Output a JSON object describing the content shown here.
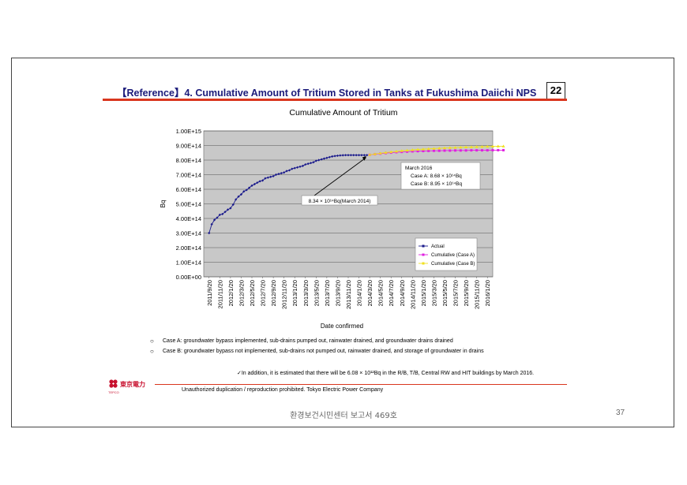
{
  "slide": {
    "title": "【Reference】4.  Cumulative Amount of Tritium Stored in Tanks at Fukushima Daiichi NPS",
    "page_box": "22",
    "case_a": "Case A: groundwater bypass implemented, sub-drains pumped out, rainwater drained, and groundwater drains drained",
    "case_b": "Case B: groundwater bypass not implemented, sub-drains not pumped out, rainwater drained, and storage of groundwater in drains",
    "bullet_symbol": "○",
    "addition_note": "✓In addition, it is estimated that there will be 6.08 × 10¹²Bq in the R/B, T/B, Central RW and HIT buildings by March 2016.",
    "copyright": "Unauthorized duplication / reproduction prohibited.  Tokyo Electric Power Company",
    "logo_text": "東京電力",
    "logo_sub": "TEPCO"
  },
  "footer": {
    "report": "환경보건시민센터 보고서 469호",
    "page": "37"
  },
  "colors": {
    "actual": "#1a1a8c",
    "case_a": "#e020e0",
    "case_b": "#f0e020",
    "plot_bg": "#c8c8c8",
    "title": "#1a1a7a",
    "accent": "#d9361e"
  },
  "chart_data": {
    "type": "line",
    "title": "Cumulative Amount of Tritium",
    "xlabel": "Date confirmed",
    "ylabel": "Bq",
    "ylim": [
      0,
      1000000000000000.0
    ],
    "yticks": [
      0,
      100000000000000.0,
      200000000000000.0,
      300000000000000.0,
      400000000000000.0,
      500000000000000.0,
      600000000000000.0,
      700000000000000.0,
      800000000000000.0,
      900000000000000.0,
      1000000000000000.0
    ],
    "ytick_labels": [
      "0.00E+00",
      "1.00E+14",
      "2.00E+14",
      "3.00E+14",
      "4.00E+14",
      "5.00E+14",
      "6.00E+14",
      "7.00E+14",
      "8.00E+14",
      "9.00E+14",
      "1.00E+15"
    ],
    "xtick_labels": [
      "2011/9/20",
      "2011/11/20",
      "2012/1/20",
      "2012/3/20",
      "2012/5/20",
      "2012/7/20",
      "2012/9/20",
      "2012/11/20",
      "2013/1/20",
      "2013/3/20",
      "2013/5/20",
      "2013/7/20",
      "2013/9/20",
      "2013/11/20",
      "2014/1/20",
      "2014/3/20",
      "2014/5/20",
      "2014/7/20",
      "2014/9/20",
      "2014/11/20",
      "2015/1/20",
      "2015/3/20",
      "2015/5/20",
      "2015/7/20",
      "2015/9/20",
      "2015/11/20",
      "2016/1/20"
    ],
    "grid": true,
    "legend_position": "bottom-right",
    "series": [
      {
        "name": "Actual",
        "x": [
          0,
          0.25,
          0.5,
          0.75,
          1,
          1.25,
          1.5,
          1.75,
          2,
          2.25,
          2.5,
          2.75,
          3,
          3.25,
          3.5,
          3.75,
          4,
          4.25,
          4.5,
          4.75,
          5,
          5.25,
          5.5,
          5.75,
          6,
          6.25,
          6.5,
          6.75,
          7,
          7.25,
          7.5,
          7.75,
          8,
          8.25,
          8.5,
          8.75,
          9,
          9.25,
          9.5,
          9.75,
          10,
          10.25,
          10.5,
          10.75,
          11,
          11.25,
          11.5,
          11.75,
          12,
          12.25,
          12.5,
          12.75,
          13,
          13.25,
          13.5,
          13.75,
          14,
          14.25,
          14.5,
          14.75
        ],
        "y": [
          300000000000000.0,
          360000000000000.0,
          390000000000000.0,
          405000000000000.0,
          425000000000000.0,
          430000000000000.0,
          445000000000000.0,
          460000000000000.0,
          470000000000000.0,
          495000000000000.0,
          530000000000000.0,
          550000000000000.0,
          565000000000000.0,
          585000000000000.0,
          595000000000000.0,
          610000000000000.0,
          625000000000000.0,
          635000000000000.0,
          645000000000000.0,
          655000000000000.0,
          660000000000000.0,
          675000000000000.0,
          680000000000000.0,
          685000000000000.0,
          690000000000000.0,
          700000000000000.0,
          705000000000000.0,
          710000000000000.0,
          715000000000000.0,
          725000000000000.0,
          730000000000000.0,
          740000000000000.0,
          745000000000000.0,
          750000000000000.0,
          755000000000000.0,
          760000000000000.0,
          770000000000000.0,
          775000000000000.0,
          780000000000000.0,
          785000000000000.0,
          795000000000000.0,
          800000000000000.0,
          805000000000000.0,
          810000000000000.0,
          815000000000000.0,
          820000000000000.0,
          825000000000000.0,
          828000000000000.0,
          830000000000000.0,
          832000000000000.0,
          833000000000000.0,
          834000000000000.0,
          834000000000000.0,
          834000000000000.0,
          834000000000000.0,
          834000000000000.0,
          834000000000000.0,
          834000000000000.0,
          834000000000000.0,
          834000000000000.0
        ]
      },
      {
        "name": "Cumulative (Case A)",
        "x": [
          15,
          15.5,
          16,
          16.5,
          17,
          17.5,
          18,
          18.5,
          19,
          19.5,
          20,
          20.5,
          21,
          21.5,
          22,
          22.5,
          23,
          23.5,
          24,
          24.5,
          25,
          25.5,
          26,
          26.5,
          27,
          27.5
        ],
        "y": [
          836000000000000.0,
          840000000000000.0,
          844000000000000.0,
          848000000000000.0,
          851000000000000.0,
          854000000000000.0,
          856000000000000.0,
          858000000000000.0,
          860000000000000.0,
          861000000000000.0,
          862000000000000.0,
          863000000000000.0,
          864000000000000.0,
          864000000000000.0,
          865000000000000.0,
          865000000000000.0,
          866000000000000.0,
          866000000000000.0,
          866000000000000.0,
          867000000000000.0,
          867000000000000.0,
          867000000000000.0,
          867000000000000.0,
          868000000000000.0,
          868000000000000.0,
          868000000000000.0
        ]
      },
      {
        "name": "Cumulative (Case B)",
        "x": [
          15,
          15.5,
          16,
          16.5,
          17,
          17.5,
          18,
          18.5,
          19,
          19.5,
          20,
          20.5,
          21,
          21.5,
          22,
          22.5,
          23,
          23.5,
          24,
          24.5,
          25,
          25.5,
          26,
          26.5,
          27,
          27.5
        ],
        "y": [
          837000000000000.0,
          842000000000000.0,
          847000000000000.0,
          852000000000000.0,
          856000000000000.0,
          860000000000000.0,
          864000000000000.0,
          867000000000000.0,
          870000000000000.0,
          873000000000000.0,
          875000000000000.0,
          877000000000000.0,
          879000000000000.0,
          881000000000000.0,
          883000000000000.0,
          885000000000000.0,
          886000000000000.0,
          888000000000000.0,
          889000000000000.0,
          890000000000000.0,
          891000000000000.0,
          892000000000000.0,
          893000000000000.0,
          894000000000000.0,
          895000000000000.0,
          895000000000000.0
        ]
      }
    ],
    "annotations": [
      {
        "text": "8.34 × 10¹⁴Bq(March 2014)",
        "x": 14.75,
        "y": 834000000000000.0
      },
      {
        "lines": [
          "March 2016",
          "Case A: 8.68 × 10¹⁴Bq",
          "Case B: 8.95 × 10¹⁴Bq"
        ]
      }
    ]
  }
}
